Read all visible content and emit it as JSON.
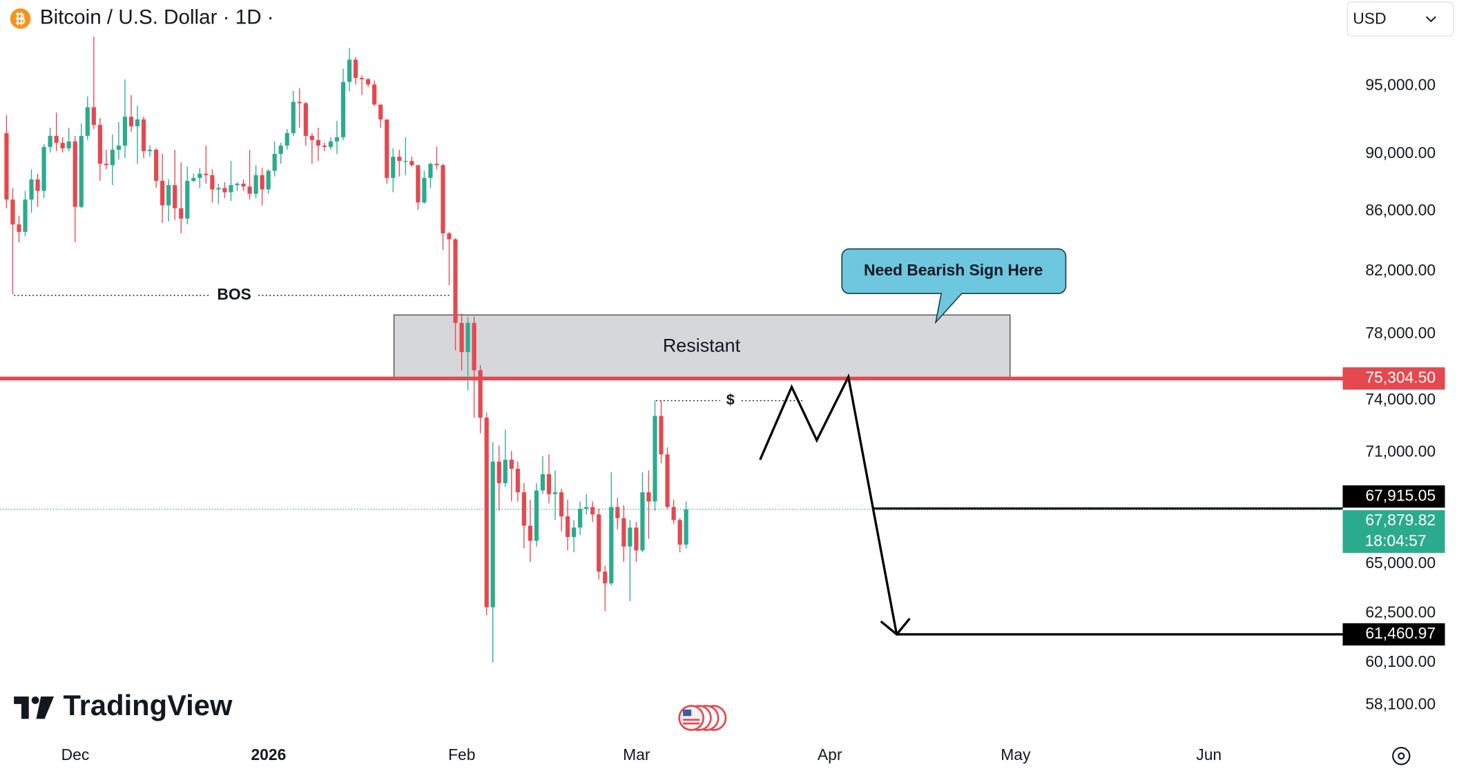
{
  "chart_data": {
    "type": "candlestick",
    "title": "Bitcoin / U.S. Dollar · 1D ·",
    "currency": "USD",
    "logo": "TradingView",
    "log_scale": true,
    "up_color": "#2bab8e",
    "down_color": "#e5484f",
    "ylim": [
      56800,
      101700
    ],
    "yticks": [
      {
        "value": 95000,
        "label": "95,000.00"
      },
      {
        "value": 90000,
        "label": "90,000.00"
      },
      {
        "value": 86000,
        "label": "86,000.00"
      },
      {
        "value": 82000,
        "label": "82,000.00"
      },
      {
        "value": 78000,
        "label": "78,000.00"
      },
      {
        "value": 74000,
        "label": "74,000.00"
      },
      {
        "value": 71000,
        "label": "71,000.00"
      },
      {
        "value": 65000,
        "label": "65,000.00"
      },
      {
        "value": 62500,
        "label": "62,500.00"
      },
      {
        "value": 60100,
        "label": "60,100.00"
      },
      {
        "value": 58100,
        "label": "58,100.00"
      }
    ],
    "xticks": [
      "Dec",
      "2026",
      "Feb",
      "Mar",
      "Apr",
      "May",
      "Jun"
    ],
    "open": [
      91500,
      86800,
      85100,
      84600,
      86800,
      88200,
      87400,
      90500,
      91300,
      90800,
      90400,
      90900,
      86300,
      91300,
      93400,
      92100,
      89300,
      89200,
      90300,
      90600,
      92700,
      92000,
      92500,
      90200,
      90300,
      88100,
      86400,
      87800,
      86200,
      85500,
      88100,
      88300,
      88600,
      88500,
      87500,
      87600,
      87300,
      87800,
      87900,
      87700,
      87200,
      88500,
      87500,
      88800,
      90000,
      90600,
      91500,
      93800,
      93700,
      91300,
      91000,
      90600,
      90500,
      90900,
      91200,
      95300,
      97000,
      95600,
      95500,
      95100,
      93600,
      92500,
      88300,
      89800,
      89500,
      89500,
      89200,
      86600,
      88300,
      89300,
      89200,
      84500,
      84100,
      78700,
      76900,
      78700,
      75800,
      73000,
      62800,
      70500,
      69300,
      70600,
      70100,
      68800,
      67000,
      66200,
      68900,
      69800,
      68700,
      68800,
      67500,
      66400,
      66900,
      67900,
      68000,
      67600,
      64600,
      64000,
      68000,
      67400,
      65900,
      66900,
      65700,
      68800,
      68300,
      73100,
      70900,
      68000,
      67300,
      66000
    ],
    "high": [
      92800,
      87600,
      85700,
      87400,
      88900,
      88600,
      90700,
      91900,
      93000,
      91200,
      91900,
      91300,
      92200,
      94200,
      98800,
      92600,
      90300,
      91400,
      92300,
      95500,
      94300,
      93500,
      92700,
      90600,
      90400,
      90000,
      88200,
      90300,
      89400,
      89100,
      88600,
      89000,
      90600,
      88900,
      87900,
      88000,
      89500,
      88000,
      88200,
      90300,
      89200,
      89000,
      88900,
      90900,
      90800,
      91800,
      94600,
      94800,
      93800,
      91500,
      91900,
      90800,
      91200,
      92400,
      96300,
      97900,
      97200,
      95800,
      95600,
      95400,
      93600,
      92500,
      90400,
      90300,
      91200,
      89800,
      89200,
      88800,
      89400,
      90500,
      89300,
      84600,
      84200,
      79300,
      79100,
      79100,
      76100,
      73300,
      71600,
      71400,
      72300,
      71100,
      70500,
      69300,
      68400,
      69300,
      70800,
      70900,
      70000,
      69000,
      68400,
      67300,
      68300,
      68700,
      68300,
      67900,
      64900,
      69900,
      68500,
      68100,
      67300,
      67200,
      69900,
      70000,
      74000,
      74000,
      71300,
      68400,
      67400,
      68300
    ],
    "low": [
      86200,
      80500,
      83900,
      84300,
      85900,
      86300,
      86900,
      90100,
      90200,
      90100,
      90200,
      83900,
      86200,
      91000,
      91800,
      88100,
      88900,
      87800,
      89600,
      89700,
      91600,
      89300,
      89700,
      89800,
      87600,
      85200,
      85300,
      85400,
      84500,
      85100,
      88000,
      87600,
      87900,
      86600,
      86500,
      86900,
      86700,
      87400,
      87400,
      86800,
      86900,
      86400,
      87200,
      88400,
      89300,
      90300,
      91300,
      91900,
      90600,
      89300,
      89500,
      90200,
      90300,
      90000,
      91000,
      94600,
      95100,
      94300,
      94900,
      93500,
      91900,
      87900,
      87300,
      88400,
      88500,
      89100,
      86100,
      86500,
      87600,
      88900,
      83400,
      81100,
      77000,
      75800,
      74600,
      73000,
      72100,
      62400,
      60100,
      67800,
      69100,
      68300,
      68300,
      65800,
      65100,
      65900,
      68700,
      68200,
      67300,
      66700,
      65700,
      65600,
      66500,
      67600,
      67200,
      64200,
      62600,
      63900,
      66800,
      65100,
      63100,
      65100,
      65600,
      66300,
      67800,
      70400,
      67900,
      67100,
      65600,
      65800
    ],
    "close": [
      86800,
      85100,
      84600,
      86800,
      88200,
      87400,
      90500,
      91300,
      90800,
      90400,
      90900,
      86300,
      91300,
      93400,
      92100,
      89300,
      89200,
      90300,
      90600,
      92700,
      92000,
      92500,
      90200,
      90300,
      88100,
      86400,
      87800,
      86200,
      85500,
      88100,
      88300,
      88600,
      88500,
      87500,
      87600,
      87300,
      87800,
      87900,
      87700,
      87200,
      88500,
      87500,
      88800,
      90000,
      90600,
      91500,
      93800,
      93700,
      91300,
      91000,
      90600,
      90500,
      90900,
      91200,
      95300,
      97000,
      95600,
      95500,
      95100,
      93600,
      92500,
      88300,
      89800,
      89500,
      89500,
      89200,
      86600,
      88300,
      89300,
      89200,
      84500,
      84100,
      78700,
      76900,
      78700,
      75800,
      73000,
      62800,
      70500,
      69300,
      70600,
      70100,
      68800,
      67000,
      66200,
      68900,
      69800,
      68700,
      68800,
      67500,
      66400,
      66900,
      67900,
      68000,
      67600,
      64600,
      64000,
      68000,
      67400,
      65900,
      66900,
      65700,
      68800,
      68300,
      73100,
      70900,
      68000,
      67300,
      66000,
      67879.82
    ],
    "price_tags": [
      {
        "value": 75304.5,
        "label": "75,304.50",
        "color": "#e5484f"
      },
      {
        "value": 67915.05,
        "label": "67,915.05",
        "color": "#000000"
      },
      {
        "value": 67879.82,
        "label": "67,879.82",
        "color": "#2bab8e",
        "countdown": "18:04:57"
      },
      {
        "value": 61460.97,
        "label": "61,460.97",
        "color": "#000000"
      }
    ],
    "bos": {
      "label": "BOS",
      "value": 80440
    },
    "liquidity": {
      "label": "$",
      "value": 73990
    },
    "resistance": {
      "label": "Resistant",
      "low": 75304.5,
      "high": 79200
    },
    "callout": "Need Bearish Sign Here",
    "projection": [
      70600,
      74800,
      71700,
      75400,
      61460.97
    ]
  }
}
